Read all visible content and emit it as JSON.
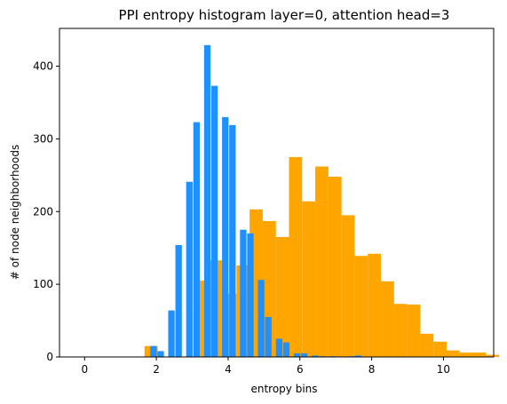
{
  "chart_data": {
    "type": "bar",
    "title": "PPI entropy histogram layer=0, attention head=3",
    "xlabel": "entropy bins",
    "ylabel": "# of node neighborhoods",
    "xlim": [
      -0.7,
      11.4
    ],
    "ylim": [
      0,
      452
    ],
    "xticks": [
      0,
      2,
      4,
      6,
      8,
      10
    ],
    "yticks": [
      0,
      100,
      200,
      300,
      400
    ],
    "grid": false,
    "legend": "none",
    "series": [
      {
        "color": "#FFA500",
        "bin_width": 0.366,
        "bin_start": 1.67,
        "counts": [
          15,
          0,
          0,
          0,
          105,
          133,
          87,
          126,
          203,
          187,
          165,
          275,
          214,
          262,
          248,
          195,
          139,
          142,
          104,
          73,
          72,
          32,
          21,
          9,
          6,
          6,
          3
        ]
      },
      {
        "color": "#1E90FF",
        "bar_width": 0.18,
        "x": [
          1.92,
          2.12,
          2.42,
          2.62,
          2.92,
          3.12,
          3.42,
          3.62,
          3.92,
          4.12,
          4.42,
          4.62,
          4.92,
          5.12,
          5.42,
          5.62,
          5.92,
          6.12,
          6.42,
          6.62,
          6.92,
          7.12,
          7.42,
          7.62
        ],
        "values": [
          15,
          8,
          64,
          154,
          241,
          323,
          429,
          373,
          330,
          319,
          175,
          170,
          106,
          55,
          25,
          20,
          5,
          5,
          2,
          1,
          1,
          0,
          1,
          2
        ]
      }
    ]
  }
}
